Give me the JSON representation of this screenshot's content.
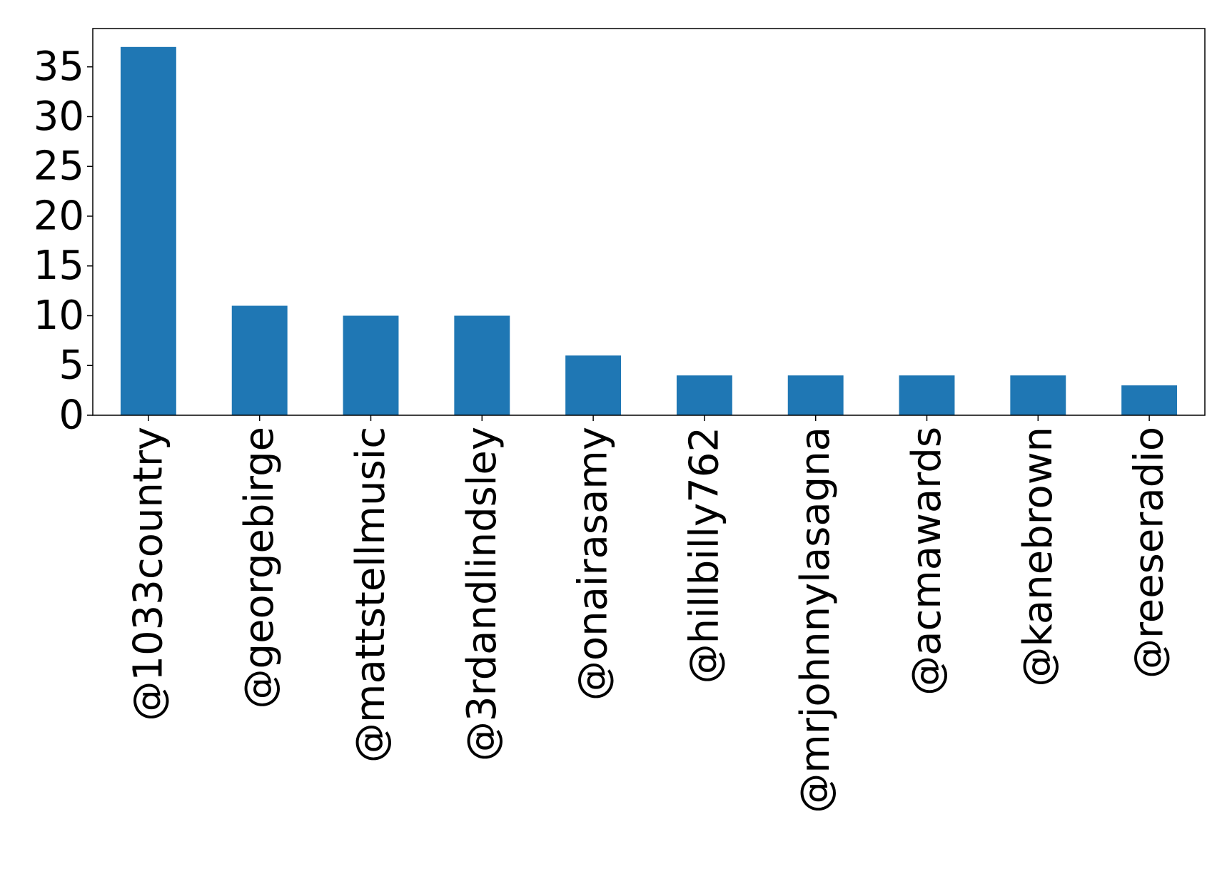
{
  "chart_data": {
    "type": "bar",
    "title": "",
    "xlabel": "",
    "ylabel": "",
    "categories": [
      "@1033country",
      "@georgebirge",
      "@mattstellmusic",
      "@3rdandlindsley",
      "@onairasamy",
      "@hillbilly762",
      "@mrjohnnylasagna",
      "@acmawards",
      "@kanebrown",
      "@reeseradio"
    ],
    "values": [
      37,
      11,
      10,
      10,
      6,
      4,
      4,
      4,
      4,
      3
    ],
    "ylim": [
      0,
      38.85
    ],
    "yticks": [
      0,
      5,
      10,
      15,
      20,
      25,
      30,
      35
    ],
    "bar_color": "#1f77b4",
    "grid": false,
    "legend": "none"
  }
}
